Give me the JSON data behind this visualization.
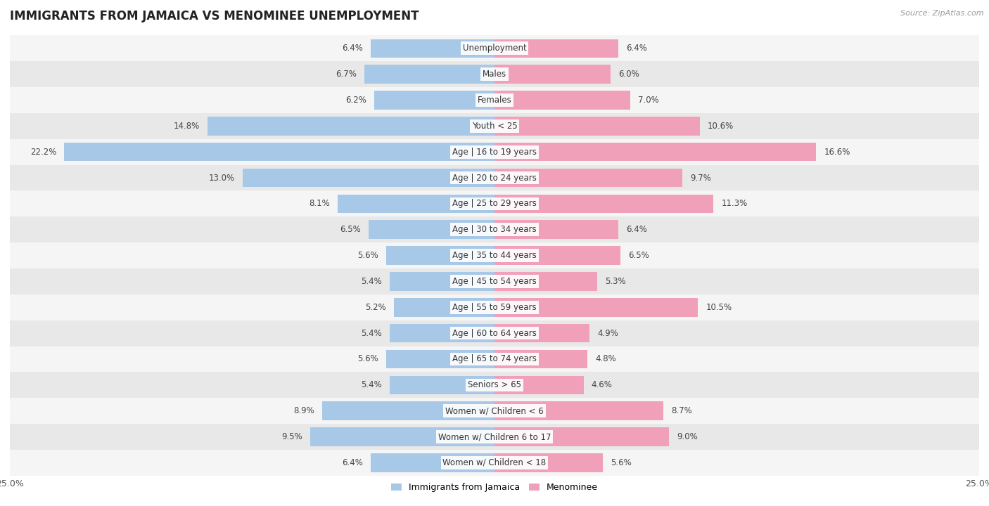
{
  "title": "IMMIGRANTS FROM JAMAICA VS MENOMINEE UNEMPLOYMENT",
  "source": "Source: ZipAtlas.com",
  "categories": [
    "Unemployment",
    "Males",
    "Females",
    "Youth < 25",
    "Age | 16 to 19 years",
    "Age | 20 to 24 years",
    "Age | 25 to 29 years",
    "Age | 30 to 34 years",
    "Age | 35 to 44 years",
    "Age | 45 to 54 years",
    "Age | 55 to 59 years",
    "Age | 60 to 64 years",
    "Age | 65 to 74 years",
    "Seniors > 65",
    "Women w/ Children < 6",
    "Women w/ Children 6 to 17",
    "Women w/ Children < 18"
  ],
  "jamaica_values": [
    6.4,
    6.7,
    6.2,
    14.8,
    22.2,
    13.0,
    8.1,
    6.5,
    5.6,
    5.4,
    5.2,
    5.4,
    5.6,
    5.4,
    8.9,
    9.5,
    6.4
  ],
  "menominee_values": [
    6.4,
    6.0,
    7.0,
    10.6,
    16.6,
    9.7,
    11.3,
    6.4,
    6.5,
    5.3,
    10.5,
    4.9,
    4.8,
    4.6,
    8.7,
    9.0,
    5.6
  ],
  "jamaica_color": "#a8c8e8",
  "menominee_color": "#f0a0b8",
  "row_bg_light": "#f5f5f5",
  "row_bg_dark": "#e8e8e8",
  "title_fontsize": 12,
  "label_fontsize": 8.5,
  "value_fontsize": 8.5,
  "legend_fontsize": 9,
  "xlim": 25.0
}
